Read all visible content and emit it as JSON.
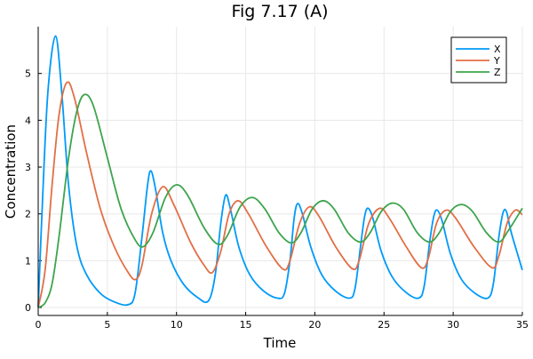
{
  "chart_data": {
    "type": "line",
    "title": "Fig 7.17 (A)",
    "xlabel": "Time",
    "ylabel": "Concentration",
    "xlim": [
      0,
      35
    ],
    "ylim": [
      -0.17,
      6.0
    ],
    "xticks": [
      0,
      5,
      10,
      15,
      20,
      25,
      30,
      35
    ],
    "yticks": [
      0,
      1,
      2,
      3,
      4,
      5
    ],
    "grid": true,
    "legend": "top-right",
    "series": [
      {
        "name": "X",
        "color": "#009af9",
        "points": [
          [
            0,
            0
          ],
          [
            0.3,
            2.2
          ],
          [
            0.7,
            4.6
          ],
          [
            1.25,
            5.8
          ],
          [
            1.7,
            4.6
          ],
          [
            2.2,
            2.6
          ],
          [
            2.8,
            1.3
          ],
          [
            3.5,
            0.7
          ],
          [
            4.5,
            0.3
          ],
          [
            5.5,
            0.12
          ],
          [
            6.5,
            0.06
          ],
          [
            7.0,
            0.3
          ],
          [
            7.5,
            1.5
          ],
          [
            7.9,
            2.6
          ],
          [
            8.15,
            2.92
          ],
          [
            8.5,
            2.5
          ],
          [
            9,
            1.6
          ],
          [
            9.6,
            1.0
          ],
          [
            10.5,
            0.5
          ],
          [
            11.5,
            0.22
          ],
          [
            12.3,
            0.14
          ],
          [
            12.8,
            0.7
          ],
          [
            13.2,
            1.8
          ],
          [
            13.55,
            2.4
          ],
          [
            13.9,
            2.1
          ],
          [
            14.5,
            1.3
          ],
          [
            15.3,
            0.7
          ],
          [
            16.3,
            0.35
          ],
          [
            17.3,
            0.2
          ],
          [
            17.8,
            0.3
          ],
          [
            18.2,
            1.0
          ],
          [
            18.5,
            1.9
          ],
          [
            18.75,
            2.22
          ],
          [
            19.1,
            2.0
          ],
          [
            19.7,
            1.3
          ],
          [
            20.5,
            0.7
          ],
          [
            21.5,
            0.35
          ],
          [
            22.5,
            0.2
          ],
          [
            22.9,
            0.4
          ],
          [
            23.3,
            1.3
          ],
          [
            23.6,
            1.95
          ],
          [
            23.85,
            2.12
          ],
          [
            24.2,
            1.9
          ],
          [
            24.8,
            1.2
          ],
          [
            25.6,
            0.65
          ],
          [
            26.6,
            0.32
          ],
          [
            27.5,
            0.2
          ],
          [
            27.9,
            0.45
          ],
          [
            28.3,
            1.4
          ],
          [
            28.6,
            1.95
          ],
          [
            28.85,
            2.08
          ],
          [
            29.2,
            1.85
          ],
          [
            29.8,
            1.15
          ],
          [
            30.6,
            0.6
          ],
          [
            31.6,
            0.3
          ],
          [
            32.5,
            0.2
          ],
          [
            32.9,
            0.5
          ],
          [
            33.3,
            1.5
          ],
          [
            33.6,
            2.02
          ],
          [
            33.85,
            2.05
          ],
          [
            34.2,
            1.6
          ],
          [
            35,
            0.8
          ]
        ]
      },
      {
        "name": "Y",
        "color": "#e26f46",
        "points": [
          [
            0,
            0
          ],
          [
            0.5,
            0.8
          ],
          [
            1,
            2.6
          ],
          [
            1.5,
            4.1
          ],
          [
            2.05,
            4.8
          ],
          [
            2.6,
            4.5
          ],
          [
            3.5,
            3.3
          ],
          [
            4.5,
            2.1
          ],
          [
            5.5,
            1.3
          ],
          [
            6.5,
            0.75
          ],
          [
            7.05,
            0.6
          ],
          [
            7.5,
            0.9
          ],
          [
            8.2,
            2.0
          ],
          [
            9.0,
            2.58
          ],
          [
            9.8,
            2.2
          ],
          [
            11,
            1.4
          ],
          [
            12,
            0.9
          ],
          [
            12.6,
            0.75
          ],
          [
            13.2,
            1.2
          ],
          [
            13.8,
            2.0
          ],
          [
            14.45,
            2.28
          ],
          [
            15.2,
            2.0
          ],
          [
            16.5,
            1.3
          ],
          [
            17.7,
            0.82
          ],
          [
            18.2,
            1.0
          ],
          [
            18.9,
            1.8
          ],
          [
            19.6,
            2.15
          ],
          [
            20.3,
            1.95
          ],
          [
            21.5,
            1.3
          ],
          [
            22.7,
            0.83
          ],
          [
            23.2,
            1.0
          ],
          [
            23.9,
            1.8
          ],
          [
            24.7,
            2.12
          ],
          [
            25.4,
            1.9
          ],
          [
            26.6,
            1.3
          ],
          [
            27.7,
            0.85
          ],
          [
            28.2,
            1.05
          ],
          [
            28.8,
            1.8
          ],
          [
            29.5,
            2.08
          ],
          [
            30.2,
            1.9
          ],
          [
            31.5,
            1.3
          ],
          [
            32.8,
            0.85
          ],
          [
            33.3,
            1.1
          ],
          [
            33.9,
            1.8
          ],
          [
            34.5,
            2.08
          ],
          [
            35,
            1.98
          ]
        ]
      },
      {
        "name": "Z",
        "color": "#3da44d",
        "points": [
          [
            0,
            0
          ],
          [
            0.5,
            0.1
          ],
          [
            1,
            0.5
          ],
          [
            1.5,
            1.5
          ],
          [
            2.2,
            3.2
          ],
          [
            2.8,
            4.2
          ],
          [
            3.35,
            4.55
          ],
          [
            4,
            4.3
          ],
          [
            5,
            3.2
          ],
          [
            6,
            2.1
          ],
          [
            7,
            1.45
          ],
          [
            7.6,
            1.3
          ],
          [
            8.3,
            1.6
          ],
          [
            9.2,
            2.35
          ],
          [
            10,
            2.62
          ],
          [
            10.8,
            2.4
          ],
          [
            12,
            1.7
          ],
          [
            13.0,
            1.35
          ],
          [
            13.7,
            1.55
          ],
          [
            14.6,
            2.15
          ],
          [
            15.5,
            2.35
          ],
          [
            16.4,
            2.1
          ],
          [
            17.4,
            1.6
          ],
          [
            18.3,
            1.38
          ],
          [
            19,
            1.6
          ],
          [
            19.8,
            2.1
          ],
          [
            20.6,
            2.28
          ],
          [
            21.4,
            2.1
          ],
          [
            22.4,
            1.6
          ],
          [
            23.3,
            1.4
          ],
          [
            24,
            1.6
          ],
          [
            24.8,
            2.05
          ],
          [
            25.6,
            2.23
          ],
          [
            26.4,
            2.1
          ],
          [
            27.4,
            1.6
          ],
          [
            28.3,
            1.4
          ],
          [
            29,
            1.6
          ],
          [
            29.8,
            2.05
          ],
          [
            30.6,
            2.2
          ],
          [
            31.4,
            2.05
          ],
          [
            32.4,
            1.6
          ],
          [
            33.3,
            1.4
          ],
          [
            34,
            1.65
          ],
          [
            35,
            2.12
          ]
        ]
      }
    ]
  }
}
